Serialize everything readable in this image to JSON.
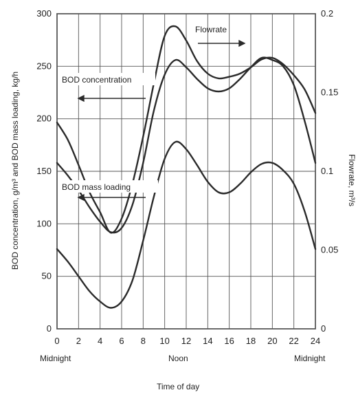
{
  "chart_data": {
    "type": "line",
    "x": [
      0,
      1,
      2,
      3,
      4,
      5,
      6,
      7,
      8,
      9,
      10,
      11,
      12,
      13,
      14,
      15,
      16,
      17,
      18,
      19,
      20,
      21,
      22,
      23,
      24
    ],
    "series": [
      {
        "name": "Flowrate",
        "axis": "right",
        "values": [
          0.131,
          0.12,
          0.104,
          0.087,
          0.074,
          0.061,
          0.07,
          0.092,
          0.122,
          0.156,
          0.186,
          0.192,
          0.183,
          0.17,
          0.162,
          0.159,
          0.16,
          0.162,
          0.166,
          0.171,
          0.172,
          0.168,
          0.161,
          0.152,
          0.137
        ]
      },
      {
        "name": "BOD concentration",
        "axis": "left",
        "values": [
          158,
          146,
          132,
          116,
          102,
          92,
          96,
          118,
          158,
          208,
          242,
          256,
          249,
          238,
          229,
          226,
          229,
          238,
          249,
          258,
          256,
          250,
          232,
          198,
          158
        ]
      },
      {
        "name": "BOD mass loading",
        "axis": "left",
        "values": [
          76,
          64,
          50,
          36,
          26,
          20,
          26,
          46,
          84,
          126,
          162,
          178,
          171,
          156,
          140,
          130,
          130,
          138,
          149,
          157,
          158,
          151,
          138,
          112,
          76
        ]
      }
    ],
    "xticks": [
      "0",
      "2",
      "4",
      "6",
      "8",
      "10",
      "12",
      "14",
      "16",
      "18",
      "20",
      "22",
      "24"
    ],
    "x_sublabels": [
      "Midnight",
      "Noon",
      "Midnight"
    ],
    "xlabel": "Time of day",
    "ylabel_left": "BOD concentration, g/m³ and BOD mass loading, kg/h",
    "ylabel_right": "Flowrate, m³/s",
    "yticks_left": [
      "0",
      "50",
      "100",
      "150",
      "200",
      "250",
      "300"
    ],
    "yticks_right": [
      "0",
      "0.05",
      "0.1",
      "0.15",
      "0.2"
    ],
    "xlim": [
      0,
      24
    ],
    "ylim_left": [
      0,
      300
    ],
    "ylim_right": [
      0,
      0.2
    ],
    "grid": true,
    "annotations": [
      "Flowrate",
      "BOD concentration",
      "BOD mass loading"
    ]
  }
}
